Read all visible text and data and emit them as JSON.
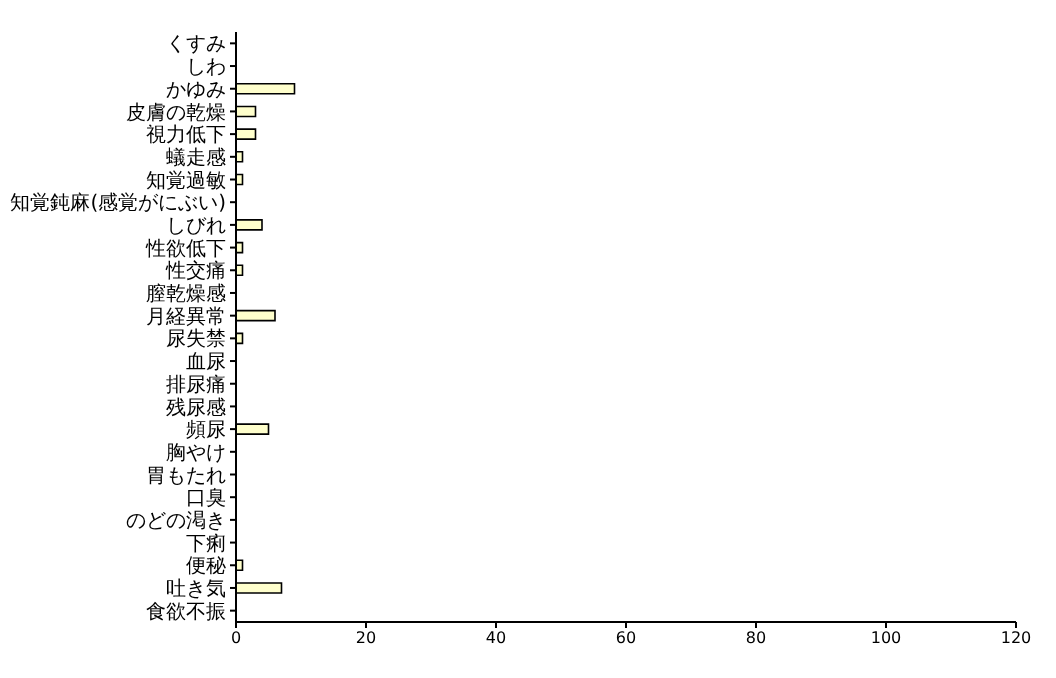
{
  "chart_data": {
    "type": "bar",
    "orientation": "horizontal",
    "categories": [
      "くすみ",
      "しわ",
      "かゆみ",
      "皮膚の乾燥",
      "視力低下",
      "蟻走感",
      "知覚過敏",
      "知覚鈍麻(感覚がにぶい)",
      "しびれ",
      "性欲低下",
      "性交痛",
      "膣乾燥感",
      "月経異常",
      "尿失禁",
      "血尿",
      "排尿痛",
      "残尿感",
      "頻尿",
      "胸やけ",
      "胃もたれ",
      "口臭",
      "のどの渇き",
      "下痢",
      "便秘",
      "吐き気",
      "食欲不振"
    ],
    "values": [
      0,
      0,
      9,
      3,
      3,
      1,
      1,
      0,
      4,
      1,
      1,
      0,
      6,
      1,
      0,
      0,
      0,
      5,
      0,
      0,
      0,
      0,
      0,
      1,
      7,
      0
    ],
    "color": "#ffffcc",
    "xlim": [
      0,
      120
    ],
    "xticks": [
      0,
      20,
      40,
      60,
      80,
      100,
      120
    ],
    "grid": false,
    "legend": false
  }
}
